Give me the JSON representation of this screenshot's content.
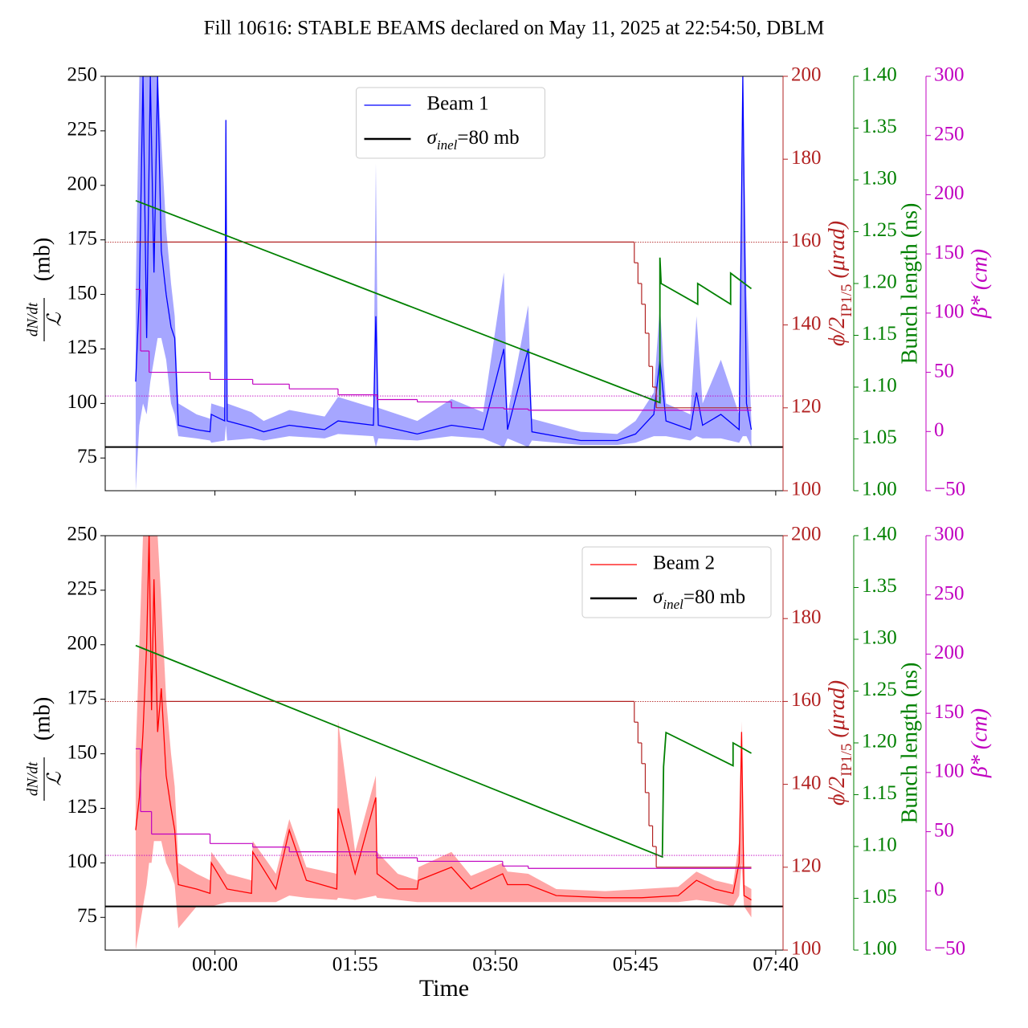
{
  "title": "Fill 10616: STABLE BEAMS declared on May 11, 2025 at 22:54:50, DBLM",
  "chart_data": [
    {
      "type": "line",
      "legend": "upper center",
      "show_xtick_labels": false,
      "xlim": [
        "22:30",
        "07:46"
      ],
      "xticks": [
        "00:00",
        "01:55",
        "03:50",
        "05:45",
        "07:40"
      ],
      "ylim": [
        60,
        250
      ],
      "yticks": [
        75,
        100,
        125,
        150,
        175,
        200,
        225,
        250
      ],
      "y2lim": [
        100,
        200
      ],
      "y2ticks": [
        100,
        120,
        140,
        160,
        180,
        200
      ],
      "y3lim": [
        1,
        1.4
      ],
      "y3ticks": [
        {
          "value": 1,
          "label": "1.00"
        },
        1.05,
        {
          "value": 1.1,
          "label": "1.10"
        },
        1.15,
        {
          "value": 1.2,
          "label": "1.20"
        },
        1.25,
        {
          "value": 1.3,
          "label": "1.30"
        },
        1.35,
        {
          "value": 1.4,
          "label": "1.40"
        }
      ],
      "y4lim": [
        -50,
        300
      ],
      "y4ticks": [
        {
          "value": -50,
          "label": "−50"
        },
        0,
        50,
        100,
        150,
        200,
        250,
        300
      ],
      "ylabel": [
        "dN/dt",
        "ℒ",
        "(mb)"
      ],
      "y2label": [
        "ϕ/2",
        "IP1/5",
        " (μrad)"
      ],
      "y3label": "Bunch length (ns)",
      "y4label": "β* (cm)",
      "series": [
        {
          "name": "Beam 1",
          "color": "#0000ff",
          "band_color": "#8080ff",
          "x": [
            "22:55",
            "22:58",
            "23:01",
            "23:04",
            "23:07",
            "23:10",
            "23:13",
            "23:16",
            "23:20",
            "23:24",
            "23:27",
            "23:30",
            "23:45",
            "23:56",
            "23:57",
            "00:08",
            "00:09",
            "00:10",
            "00:30",
            "00:40",
            "01:01",
            "01:30",
            "01:41",
            "02:10",
            "02:12",
            "02:14",
            "02:46",
            "03:14",
            "03:40",
            "03:57",
            "04:00",
            "04:17",
            "04:20",
            "04:40",
            "05:00",
            "05:30",
            "05:45",
            "06:00",
            "06:05",
            "06:10",
            "06:30",
            "06:35",
            "06:40",
            "06:55",
            "07:10",
            "07:13",
            "07:16",
            "07:20"
          ],
          "values": [
            110,
            150,
            250,
            130,
            250,
            160,
            250,
            170,
            150,
            135,
            130,
            90,
            88,
            87,
            95,
            92,
            230,
            92,
            89,
            87,
            90,
            88,
            92,
            90,
            140,
            90,
            86,
            90,
            88,
            125,
            88,
            125,
            87,
            85,
            83,
            83,
            86,
            95,
            120,
            92,
            88,
            105,
            90,
            95,
            88,
            250,
            100,
            88
          ],
          "lower": [
            60,
            90,
            100,
            95,
            110,
            120,
            130,
            130,
            120,
            100,
            95,
            85,
            84,
            83,
            82,
            83,
            90,
            83,
            84,
            83,
            85,
            84,
            86,
            85,
            80,
            84,
            83,
            85,
            84,
            80,
            84,
            80,
            83,
            82,
            81,
            81,
            82,
            85,
            85,
            85,
            83,
            85,
            84,
            84,
            82,
            85,
            85,
            80
          ],
          "upper": [
            150,
            250,
            250,
            250,
            250,
            250,
            250,
            220,
            180,
            155,
            140,
            100,
            95,
            93,
            100,
            98,
            230,
            100,
            96,
            92,
            97,
            94,
            103,
            98,
            210,
            98,
            92,
            102,
            96,
            160,
            95,
            145,
            93,
            90,
            87,
            86,
            92,
            105,
            145,
            100,
            95,
            140,
            100,
            120,
            95,
            250,
            150,
            92
          ]
        },
        {
          "name": [
            "σ",
            "inel",
            "=80 mb"
          ],
          "color": "#000000",
          "kind": "hline",
          "values": [
            80
          ]
        },
        {
          "axis": "y2",
          "color": "#b22222",
          "drawstyle": "steps-post",
          "x": [
            "22:55",
            "05:44",
            "05:47",
            "05:50",
            "05:53",
            "05:56",
            "05:59",
            "06:02",
            "07:20"
          ],
          "values": [
            160,
            155,
            150,
            145,
            138,
            130,
            125,
            120,
            120
          ]
        },
        {
          "axis": "y3",
          "color": "#008000",
          "x": [
            "22:55",
            "06:05",
            "06:05",
            "06:06",
            "06:36",
            "06:36",
            "07:03",
            "07:03",
            "07:20"
          ],
          "values": [
            1.28,
            1.085,
            1.225,
            1.2,
            1.18,
            1.2,
            1.18,
            1.21,
            1.195
          ]
        },
        {
          "axis": "y4",
          "color": "#c000c0",
          "drawstyle": "steps-post",
          "x": [
            "22:55",
            "22:59",
            "23:06",
            "23:56",
            "00:31",
            "01:01",
            "01:41",
            "02:13",
            "02:46",
            "03:14",
            "03:57",
            "04:17",
            "07:20"
          ],
          "values": [
            120,
            68,
            50,
            44,
            40,
            36,
            31,
            27,
            25,
            20,
            19,
            18,
            18
          ]
        }
      ],
      "references": [
        {
          "axis": "y2",
          "value": 160,
          "color": "#b22222"
        },
        {
          "axis": "y4",
          "value": 30,
          "color": "#c000c0"
        }
      ]
    },
    {
      "type": "line",
      "legend": "upper right",
      "show_xtick_labels": true,
      "xlabel": "Time",
      "xlim": [
        "22:30",
        "07:46"
      ],
      "xticks": [
        "00:00",
        "01:55",
        "03:50",
        "05:45",
        "07:40"
      ],
      "ylim": [
        60,
        250
      ],
      "yticks": [
        75,
        100,
        125,
        150,
        175,
        200,
        225,
        250
      ],
      "y2lim": [
        100,
        200
      ],
      "y2ticks": [
        100,
        120,
        140,
        160,
        180,
        200
      ],
      "y3lim": [
        1,
        1.4
      ],
      "y3ticks": [
        {
          "value": 1,
          "label": "1.00"
        },
        1.05,
        {
          "value": 1.1,
          "label": "1.10"
        },
        1.15,
        {
          "value": 1.2,
          "label": "1.20"
        },
        1.25,
        {
          "value": 1.3,
          "label": "1.30"
        },
        1.35,
        {
          "value": 1.4,
          "label": "1.40"
        }
      ],
      "y4lim": [
        -50,
        300
      ],
      "y4ticks": [
        {
          "value": -50,
          "label": "−50"
        },
        0,
        50,
        100,
        150,
        200,
        250,
        300
      ],
      "ylabel": [
        "dN/dt",
        "ℒ",
        "(mb)"
      ],
      "y2label": [
        "ϕ/2",
        "IP1/5",
        " (μrad)"
      ],
      "y3label": "Bunch length (ns)",
      "y4label": "β* (cm)",
      "series": [
        {
          "name": "Beam 2",
          "color": "#ff0000",
          "band_color": "#ff8080",
          "x": [
            "22:55",
            "22:58",
            "23:01",
            "23:04",
            "23:06",
            "23:08",
            "23:10",
            "23:13",
            "23:16",
            "23:20",
            "23:24",
            "23:27",
            "23:30",
            "23:45",
            "23:56",
            "23:57",
            "00:10",
            "00:30",
            "00:31",
            "00:50",
            "01:01",
            "01:15",
            "01:40",
            "01:41",
            "01:55",
            "02:12",
            "02:13",
            "02:30",
            "02:46",
            "02:47",
            "03:14",
            "03:30",
            "03:56",
            "04:00",
            "04:17",
            "04:40",
            "05:20",
            "05:50",
            "06:20",
            "06:35",
            "06:50",
            "07:05",
            "07:10",
            "07:12",
            "07:14",
            "07:20"
          ],
          "values": [
            115,
            130,
            160,
            200,
            250,
            170,
            230,
            160,
            180,
            140,
            125,
            115,
            90,
            88,
            86,
            100,
            88,
            86,
            105,
            88,
            115,
            92,
            88,
            125,
            95,
            130,
            95,
            88,
            88,
            92,
            98,
            88,
            95,
            90,
            90,
            85,
            84,
            84,
            85,
            92,
            88,
            86,
            100,
            160,
            85,
            83
          ],
          "lower": [
            60,
            70,
            80,
            90,
            100,
            100,
            110,
            110,
            110,
            100,
            95,
            90,
            70,
            80,
            80,
            80,
            82,
            82,
            82,
            82,
            85,
            84,
            83,
            84,
            83,
            85,
            84,
            83,
            82,
            82,
            82,
            82,
            82,
            82,
            82,
            82,
            82,
            82,
            82,
            83,
            82,
            80,
            85,
            100,
            80,
            75
          ],
          "upper": [
            150,
            200,
            250,
            250,
            250,
            250,
            250,
            250,
            220,
            175,
            150,
            135,
            100,
            95,
            92,
            105,
            95,
            92,
            110,
            95,
            120,
            98,
            95,
            165,
            105,
            140,
            105,
            95,
            92,
            98,
            105,
            94,
            100,
            96,
            95,
            88,
            87,
            88,
            89,
            96,
            92,
            90,
            110,
            165,
            90,
            88
          ]
        },
        {
          "name": [
            "σ",
            "inel",
            "=80 mb"
          ],
          "color": "#000000",
          "kind": "hline",
          "values": [
            80
          ]
        },
        {
          "axis": "y2",
          "color": "#b22222",
          "drawstyle": "steps-post",
          "x": [
            "22:55",
            "05:44",
            "05:47",
            "05:50",
            "05:53",
            "05:56",
            "05:59",
            "06:02",
            "07:20"
          ],
          "values": [
            160,
            155,
            150,
            145,
            138,
            130,
            125,
            120,
            120
          ]
        },
        {
          "axis": "y3",
          "color": "#008000",
          "x": [
            "22:55",
            "06:07",
            "06:08",
            "06:10",
            "07:05",
            "07:05",
            "07:20"
          ],
          "values": [
            1.294,
            1.09,
            1.177,
            1.21,
            1.178,
            1.2,
            1.19
          ]
        },
        {
          "axis": "y4",
          "color": "#c000c0",
          "drawstyle": "steps-post",
          "x": [
            "22:55",
            "22:59",
            "23:08",
            "23:56",
            "00:31",
            "01:01",
            "02:13",
            "02:46",
            "03:56",
            "04:17",
            "07:20"
          ],
          "values": [
            120,
            67,
            48,
            40,
            37,
            33,
            28,
            25,
            21,
            19,
            19
          ]
        }
      ],
      "references": [
        {
          "axis": "y2",
          "value": 160,
          "color": "#b22222"
        },
        {
          "axis": "y4",
          "value": 30,
          "color": "#c000c0"
        }
      ]
    }
  ]
}
